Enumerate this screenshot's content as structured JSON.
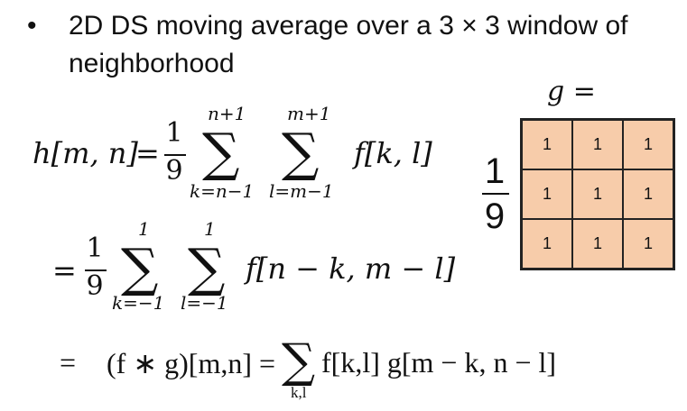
{
  "bullet": {
    "text": "2D DS moving average over a 3 × 3 window of neighborhood"
  },
  "kernel": {
    "label": "g =",
    "scale_numerator": "1",
    "scale_denominator": "9",
    "rows": [
      [
        "1",
        "1",
        "1"
      ],
      [
        "1",
        "1",
        "1"
      ],
      [
        "1",
        "1",
        "1"
      ]
    ],
    "cell_color": "#f7ccaa"
  },
  "equations": {
    "eq1": {
      "lhs": "h[m, n]",
      "eq": "=",
      "coef_num": "1",
      "coef_den": "9",
      "sum1_upper": "n+1",
      "sum1_lower": "k=n−1",
      "sum2_upper": "m+1",
      "sum2_lower": "l=m−1",
      "term": "f[k, l]"
    },
    "eq2": {
      "eq": "=",
      "coef_num": "1",
      "coef_den": "9",
      "sum1_upper": "1",
      "sum1_lower": "k=−1",
      "sum2_upper": "1",
      "sum2_lower": "l=−1",
      "term": "f[n − k, m − l]"
    },
    "eq3": {
      "eq": "=",
      "lhs": "(f ∗ g)[m,n] =",
      "sum_lower": "k,l",
      "term": "f[k,l] g[m − k, n − l]"
    }
  }
}
